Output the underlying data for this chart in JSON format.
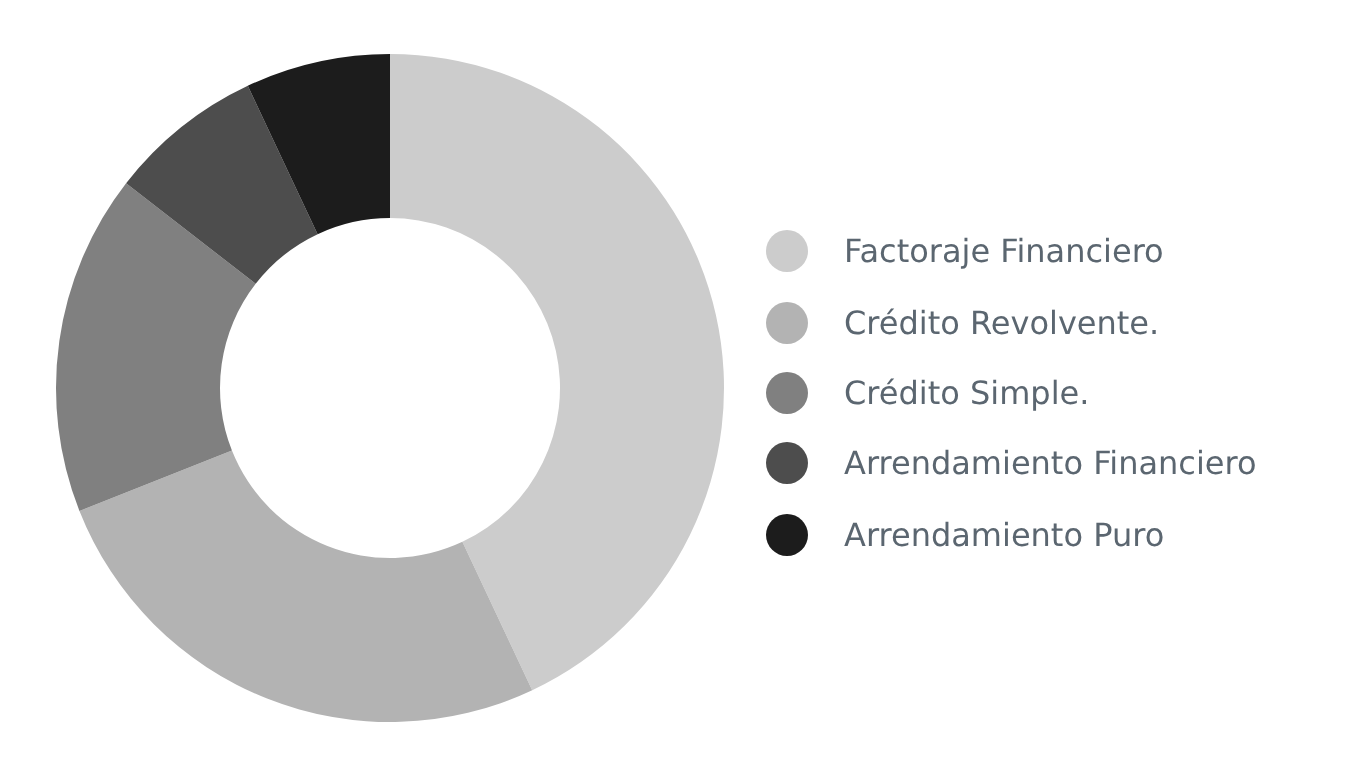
{
  "chart_data": {
    "type": "donut",
    "categories": [
      "Factoraje Financiero",
      "Crédito Revolvente.",
      "Crédito Simple.",
      "Arrendamiento Financiero",
      "Arrendamiento Puro"
    ],
    "values": [
      43,
      26,
      16.5,
      7.5,
      7
    ],
    "colors": [
      "#cccccc",
      "#b3b3b3",
      "#808080",
      "#4d4d4d",
      "#1c1c1c"
    ],
    "legend": "right"
  }
}
